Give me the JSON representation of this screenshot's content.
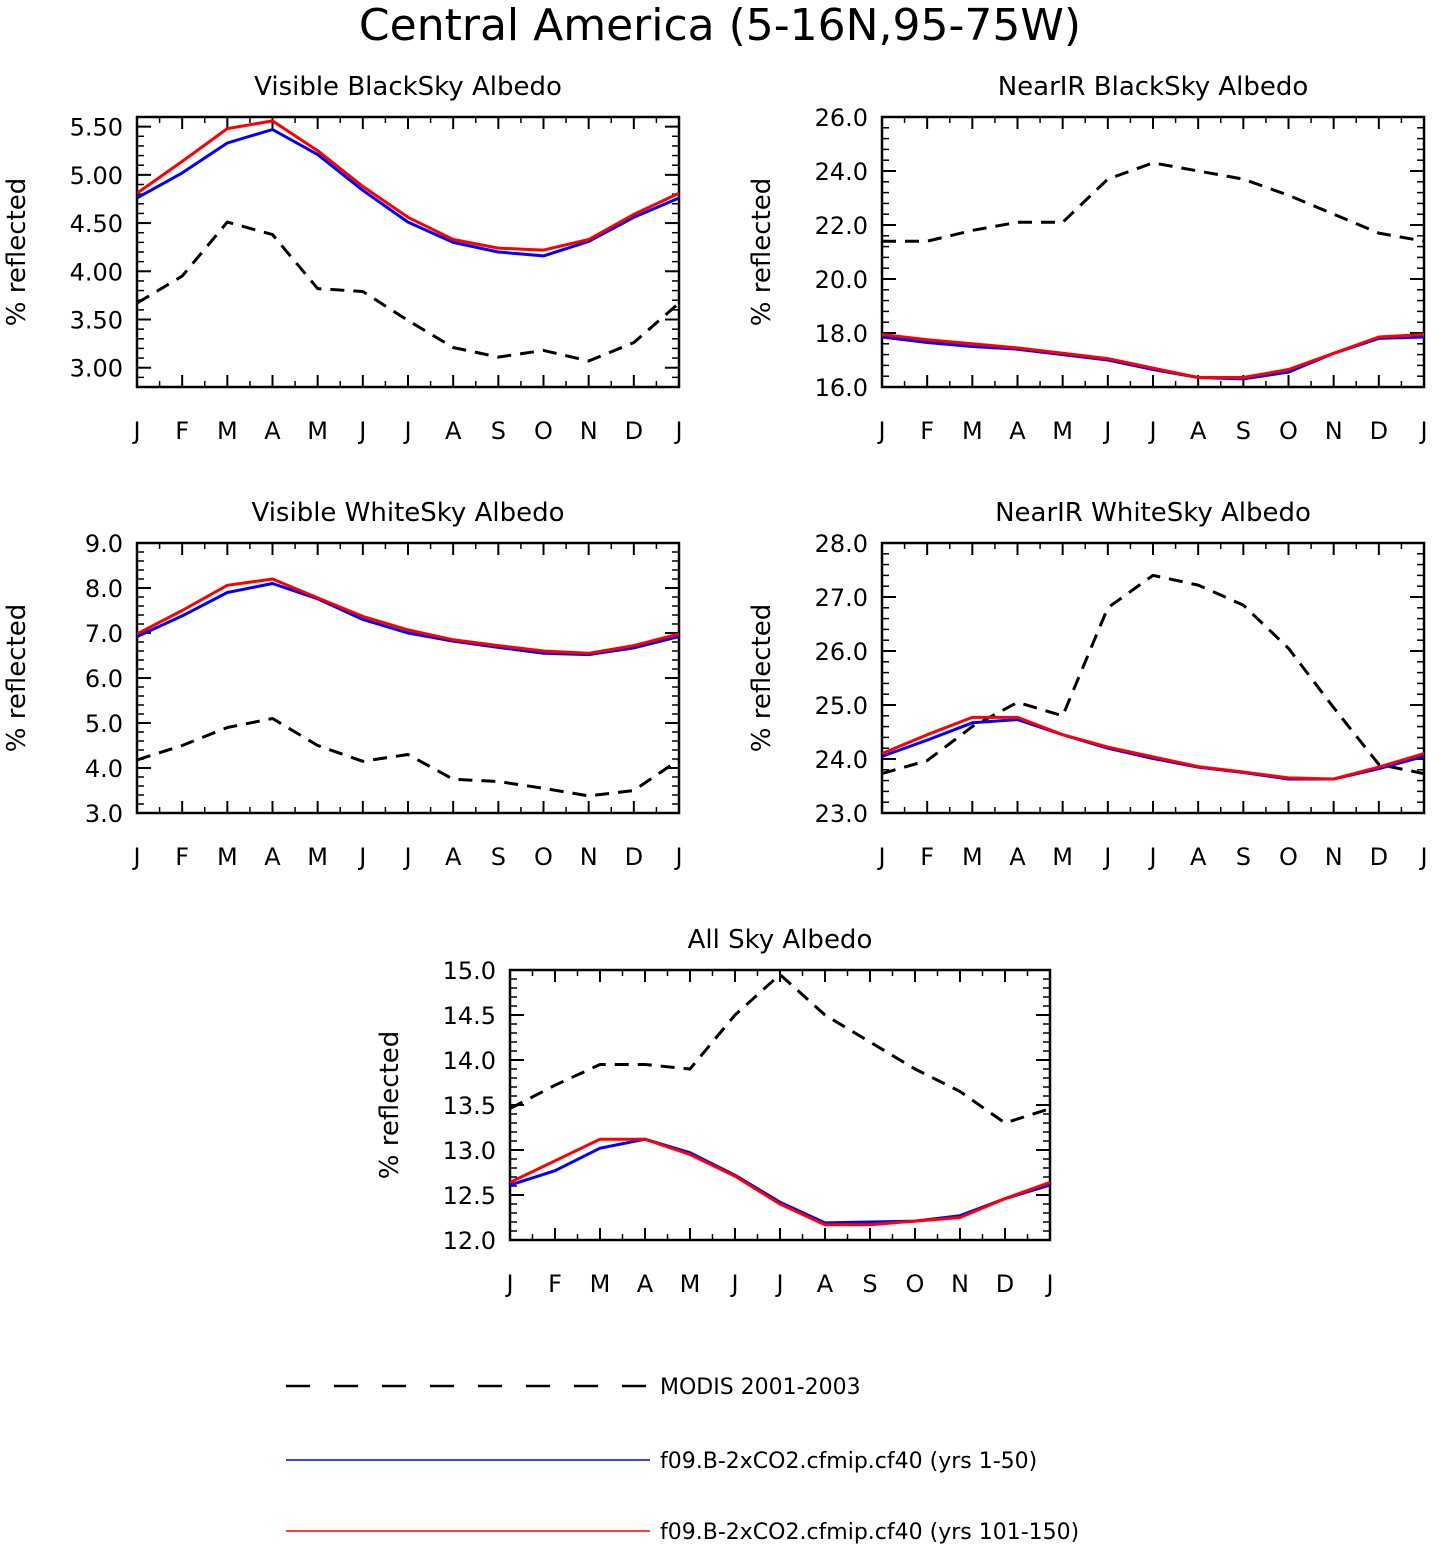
{
  "figure_title": "Central America (5-16N,95-75W)",
  "colors": {
    "modis": "#000000",
    "run1": "#0000ff",
    "run2": "#ff0000"
  },
  "legend": [
    {
      "label": "MODIS 2001-2003",
      "style": "dashed",
      "color": "#000000"
    },
    {
      "label": "f09.B-2xCO2.cfmip.cf40 (yrs 1-50)",
      "style": "solid",
      "color": "#0000ff"
    },
    {
      "label": "f09.B-2xCO2.cfmip.cf40 (yrs 101-150)",
      "style": "solid",
      "color": "#ff0000"
    }
  ],
  "chart_data": [
    {
      "type": "line",
      "title": "Visible BlackSky Albedo",
      "ylabel": "% reflected",
      "xlabel": "",
      "categories": [
        "J",
        "F",
        "M",
        "A",
        "M",
        "J",
        "J",
        "A",
        "S",
        "O",
        "N",
        "D",
        "J"
      ],
      "ylim": [
        2.8,
        5.6
      ],
      "yticks": [
        3.0,
        3.5,
        4.0,
        4.5,
        5.0,
        5.5
      ],
      "ytick_labels": [
        "3.00",
        "3.50",
        "4.00",
        "4.50",
        "5.00",
        "5.50"
      ],
      "series": [
        {
          "name": "MODIS 2001-2003",
          "style": "dashed",
          "color": "#000000",
          "values": [
            3.67,
            3.95,
            4.51,
            4.38,
            3.82,
            3.79,
            3.49,
            3.21,
            3.11,
            3.18,
            3.07,
            3.26,
            3.67
          ]
        },
        {
          "name": "f09.B-2xCO2.cfmip.cf40 (yrs 1-50)",
          "style": "solid",
          "color": "#0000ff",
          "values": [
            4.76,
            5.02,
            5.33,
            5.47,
            5.21,
            4.84,
            4.51,
            4.3,
            4.2,
            4.16,
            4.31,
            4.56,
            4.76
          ]
        },
        {
          "name": "f09.B-2xCO2.cfmip.cf40 (yrs 101-150)",
          "style": "solid",
          "color": "#ff0000",
          "values": [
            4.81,
            5.14,
            5.48,
            5.56,
            5.25,
            4.88,
            4.56,
            4.33,
            4.24,
            4.22,
            4.33,
            4.59,
            4.81
          ]
        }
      ]
    },
    {
      "type": "line",
      "title": "NearIR BlackSky Albedo",
      "ylabel": "% reflected",
      "xlabel": "",
      "categories": [
        "J",
        "F",
        "M",
        "A",
        "M",
        "J",
        "J",
        "A",
        "S",
        "O",
        "N",
        "D",
        "J"
      ],
      "ylim": [
        16.0,
        26.0
      ],
      "yticks": [
        16.0,
        18.0,
        20.0,
        22.0,
        24.0,
        26.0
      ],
      "ytick_labels": [
        "16.0",
        "18.0",
        "20.0",
        "22.0",
        "24.0",
        "26.0"
      ],
      "series": [
        {
          "name": "MODIS 2001-2003",
          "style": "dashed",
          "color": "#000000",
          "values": [
            21.4,
            21.4,
            21.8,
            22.1,
            22.1,
            23.7,
            24.3,
            24.0,
            23.7,
            23.1,
            22.4,
            21.7,
            21.4
          ]
        },
        {
          "name": "f09.B-2xCO2.cfmip.cf40 (yrs 1-50)",
          "style": "solid",
          "color": "#0000ff",
          "values": [
            17.85,
            17.65,
            17.5,
            17.4,
            17.2,
            17.0,
            16.65,
            16.35,
            16.3,
            16.55,
            17.25,
            17.8,
            17.85
          ]
        },
        {
          "name": "f09.B-2xCO2.cfmip.cf40 (yrs 101-150)",
          "style": "solid",
          "color": "#ff0000",
          "values": [
            17.95,
            17.75,
            17.6,
            17.45,
            17.25,
            17.05,
            16.7,
            16.35,
            16.35,
            16.65,
            17.25,
            17.85,
            17.95
          ]
        }
      ]
    },
    {
      "type": "line",
      "title": "Visible WhiteSky Albedo",
      "ylabel": "% reflected",
      "xlabel": "",
      "categories": [
        "J",
        "F",
        "M",
        "A",
        "M",
        "J",
        "J",
        "A",
        "S",
        "O",
        "N",
        "D",
        "J"
      ],
      "ylim": [
        3.0,
        9.0
      ],
      "yticks": [
        3.0,
        4.0,
        5.0,
        6.0,
        7.0,
        8.0,
        9.0
      ],
      "ytick_labels": [
        "3.0",
        "4.0",
        "5.0",
        "6.0",
        "7.0",
        "8.0",
        "9.0"
      ],
      "series": [
        {
          "name": "MODIS 2001-2003",
          "style": "dashed",
          "color": "#000000",
          "values": [
            4.18,
            4.5,
            4.9,
            5.1,
            4.5,
            4.15,
            4.3,
            3.75,
            3.7,
            3.55,
            3.38,
            3.5,
            4.18
          ]
        },
        {
          "name": "f09.B-2xCO2.cfmip.cf40 (yrs 1-50)",
          "style": "solid",
          "color": "#0000ff",
          "values": [
            6.92,
            7.38,
            7.9,
            8.1,
            7.76,
            7.3,
            7.0,
            6.82,
            6.68,
            6.55,
            6.52,
            6.67,
            6.92
          ]
        },
        {
          "name": "f09.B-2xCO2.cfmip.cf40 (yrs 101-150)",
          "style": "solid",
          "color": "#ff0000",
          "values": [
            6.98,
            7.5,
            8.06,
            8.2,
            7.78,
            7.37,
            7.07,
            6.85,
            6.72,
            6.6,
            6.55,
            6.72,
            6.98
          ]
        }
      ]
    },
    {
      "type": "line",
      "title": "NearIR WhiteSky Albedo",
      "ylabel": "% reflected",
      "xlabel": "",
      "categories": [
        "J",
        "F",
        "M",
        "A",
        "M",
        "J",
        "J",
        "A",
        "S",
        "O",
        "N",
        "D",
        "J"
      ],
      "ylim": [
        23.0,
        28.0
      ],
      "yticks": [
        23.0,
        24.0,
        25.0,
        26.0,
        27.0,
        28.0
      ],
      "ytick_labels": [
        "23.0",
        "24.0",
        "25.0",
        "26.0",
        "27.0",
        "28.0"
      ],
      "series": [
        {
          "name": "MODIS 2001-2003",
          "style": "dashed",
          "color": "#000000",
          "values": [
            23.73,
            23.97,
            24.6,
            25.05,
            24.8,
            26.8,
            27.4,
            27.22,
            26.85,
            26.05,
            24.95,
            23.9,
            23.73
          ]
        },
        {
          "name": "f09.B-2xCO2.cfmip.cf40 (yrs 1-50)",
          "style": "solid",
          "color": "#0000ff",
          "values": [
            24.05,
            24.35,
            24.67,
            24.73,
            24.45,
            24.2,
            24.01,
            23.85,
            23.75,
            23.63,
            23.63,
            23.82,
            24.05
          ]
        },
        {
          "name": "f09.B-2xCO2.cfmip.cf40 (yrs 101-150)",
          "style": "solid",
          "color": "#ff0000",
          "values": [
            24.1,
            24.45,
            24.77,
            24.77,
            24.45,
            24.22,
            24.04,
            23.86,
            23.76,
            23.65,
            23.63,
            23.85,
            24.1
          ]
        }
      ]
    },
    {
      "type": "line",
      "title": "All Sky Albedo",
      "ylabel": "% reflected",
      "xlabel": "",
      "categories": [
        "J",
        "F",
        "M",
        "A",
        "M",
        "J",
        "J",
        "A",
        "S",
        "O",
        "N",
        "D",
        "J"
      ],
      "ylim": [
        12.0,
        15.0
      ],
      "yticks": [
        12.0,
        12.5,
        13.0,
        13.5,
        14.0,
        14.5,
        15.0
      ],
      "ytick_labels": [
        "12.0",
        "12.5",
        "13.0",
        "13.5",
        "14.0",
        "14.5",
        "15.0"
      ],
      "series": [
        {
          "name": "MODIS 2001-2003",
          "style": "dashed",
          "color": "#000000",
          "values": [
            13.46,
            13.72,
            13.95,
            13.95,
            13.9,
            14.5,
            14.95,
            14.5,
            14.2,
            13.9,
            13.65,
            13.3,
            13.46
          ]
        },
        {
          "name": "f09.B-2xCO2.cfmip.cf40 (yrs 1-50)",
          "style": "solid",
          "color": "#0000ff",
          "values": [
            12.61,
            12.77,
            13.02,
            13.12,
            12.97,
            12.72,
            12.42,
            12.19,
            12.2,
            12.21,
            12.27,
            12.46,
            12.61
          ]
        },
        {
          "name": "f09.B-2xCO2.cfmip.cf40 (yrs 101-150)",
          "style": "solid",
          "color": "#ff0000",
          "values": [
            12.64,
            12.88,
            13.12,
            13.12,
            12.95,
            12.71,
            12.4,
            12.17,
            12.17,
            12.21,
            12.25,
            12.46,
            12.64
          ]
        }
      ]
    }
  ]
}
